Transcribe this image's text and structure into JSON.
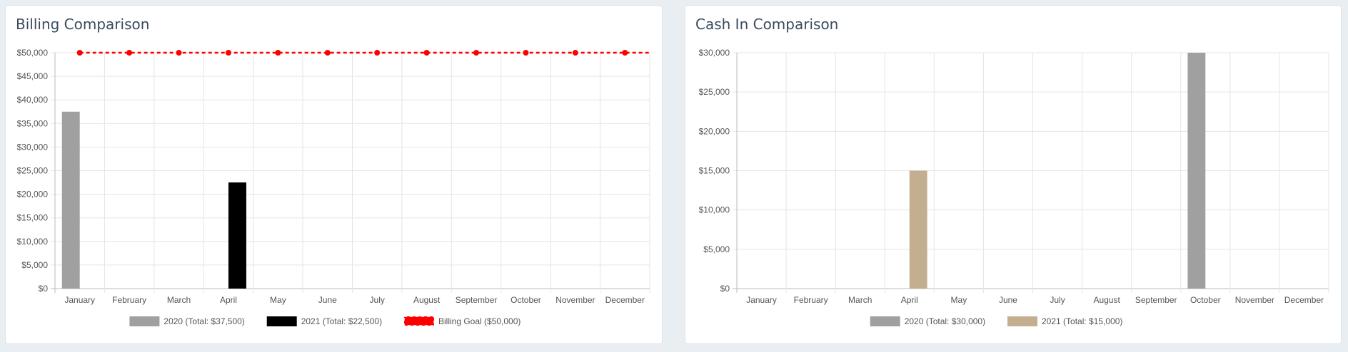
{
  "cards": [
    {
      "title": "Billing Comparison",
      "chart_data": {
        "type": "bar",
        "categories": [
          "January",
          "February",
          "March",
          "April",
          "May",
          "June",
          "July",
          "August",
          "September",
          "October",
          "November",
          "December"
        ],
        "ylim": [
          0,
          50000
        ],
        "yticks": [
          {
            "value": 0,
            "label": "$0"
          },
          {
            "value": 5000,
            "label": "$5,000"
          },
          {
            "value": 10000,
            "label": "$10,000"
          },
          {
            "value": 15000,
            "label": "$15,000"
          },
          {
            "value": 20000,
            "label": "$20,000"
          },
          {
            "value": 25000,
            "label": "$25,000"
          },
          {
            "value": 30000,
            "label": "$30,000"
          },
          {
            "value": 35000,
            "label": "$35,000"
          },
          {
            "value": 40000,
            "label": "$40,000"
          },
          {
            "value": 45000,
            "label": "$45,000"
          },
          {
            "value": 50000,
            "label": "$50,000"
          }
        ],
        "series": [
          {
            "name": "2020 (Total: $37,500)",
            "type": "bar",
            "color": "#a0a0a0",
            "values": [
              37500,
              0,
              0,
              0,
              0,
              0,
              0,
              0,
              0,
              0,
              0,
              0
            ]
          },
          {
            "name": "2021 (Total: $22,500)",
            "type": "bar",
            "color": "#000000",
            "values": [
              0,
              0,
              0,
              22500,
              0,
              0,
              0,
              0,
              0,
              0,
              0,
              0
            ]
          },
          {
            "name": "Billing Goal ($50,000)",
            "type": "line",
            "style": "dashed",
            "color": "#ff0000",
            "values": [
              50000,
              50000,
              50000,
              50000,
              50000,
              50000,
              50000,
              50000,
              50000,
              50000,
              50000,
              50000
            ]
          }
        ],
        "grid": true,
        "legend": "bottom"
      }
    },
    {
      "title": "Cash In Comparison",
      "chart_data": {
        "type": "bar",
        "categories": [
          "January",
          "February",
          "March",
          "April",
          "May",
          "June",
          "July",
          "August",
          "September",
          "October",
          "November",
          "December"
        ],
        "ylim": [
          0,
          30000
        ],
        "yticks": [
          {
            "value": 0,
            "label": "$0"
          },
          {
            "value": 5000,
            "label": "$5,000"
          },
          {
            "value": 10000,
            "label": "$10,000"
          },
          {
            "value": 15000,
            "label": "$15,000"
          },
          {
            "value": 20000,
            "label": "$20,000"
          },
          {
            "value": 25000,
            "label": "$25,000"
          },
          {
            "value": 30000,
            "label": "$30,000"
          }
        ],
        "series": [
          {
            "name": "2020 (Total: $30,000)",
            "type": "bar",
            "color": "#a0a0a0",
            "values": [
              0,
              0,
              0,
              0,
              0,
              0,
              0,
              0,
              0,
              30000,
              0,
              0
            ]
          },
          {
            "name": "2021 (Total: $15,000)",
            "type": "bar",
            "color": "#c4ae90",
            "values": [
              0,
              0,
              0,
              15000,
              0,
              0,
              0,
              0,
              0,
              0,
              0,
              0
            ]
          }
        ],
        "grid": true,
        "legend": "bottom"
      }
    }
  ]
}
